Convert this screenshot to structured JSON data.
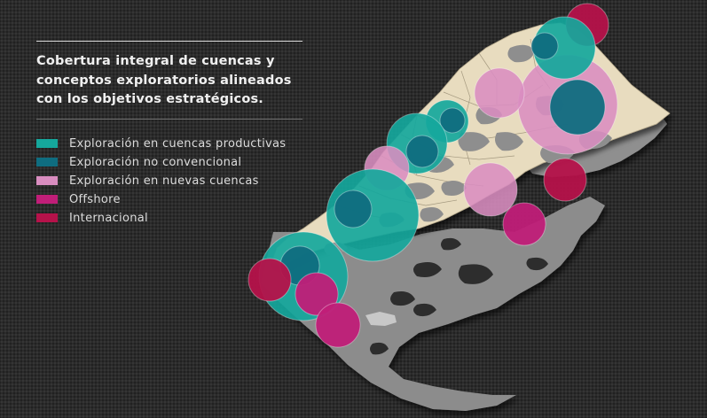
{
  "title": "Cobertura integral de cuencas y conceptos exploratorios alineados con los objetivos estratégicos.",
  "legend": [
    {
      "label": "Exploración en cuencas productivas",
      "color": "#15a79c"
    },
    {
      "label": "Exploración no convencional",
      "color": "#0f6d80"
    },
    {
      "label": "Exploración en nuevas cuencas",
      "color": "#d98dc0"
    },
    {
      "label": "Offshore",
      "color": "#c01e78"
    },
    {
      "label": "Internacional",
      "color": "#b5124a"
    }
  ],
  "colors": {
    "land": "#e8dcbf",
    "shelf": "#8a8a8a",
    "background": "#2b2b2b"
  }
}
